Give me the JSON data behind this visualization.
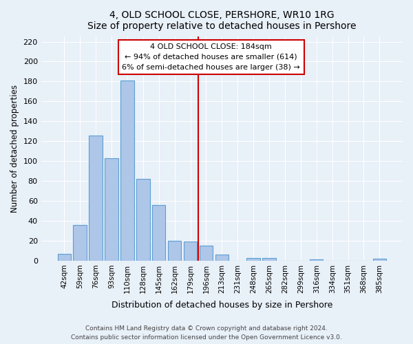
{
  "title": "4, OLD SCHOOL CLOSE, PERSHORE, WR10 1RG",
  "subtitle": "Size of property relative to detached houses in Pershore",
  "xlabel": "Distribution of detached houses by size in Pershore",
  "ylabel": "Number of detached properties",
  "bar_labels": [
    "42sqm",
    "59sqm",
    "76sqm",
    "93sqm",
    "110sqm",
    "128sqm",
    "145sqm",
    "162sqm",
    "179sqm",
    "196sqm",
    "213sqm",
    "231sqm",
    "248sqm",
    "265sqm",
    "282sqm",
    "299sqm",
    "316sqm",
    "334sqm",
    "351sqm",
    "368sqm",
    "385sqm"
  ],
  "bar_values": [
    7,
    36,
    126,
    103,
    181,
    82,
    56,
    20,
    19,
    15,
    6,
    0,
    3,
    3,
    0,
    0,
    1,
    0,
    0,
    0,
    2
  ],
  "bar_color": "#aec6e8",
  "bar_edge_color": "#5a9fd4",
  "vline_x": 8.5,
  "vline_color": "#cc0000",
  "annotation_title": "4 OLD SCHOOL CLOSE: 184sqm",
  "annotation_line1": "← 94% of detached houses are smaller (614)",
  "annotation_line2": "6% of semi-detached houses are larger (38) →",
  "annotation_box_color": "#ffffff",
  "annotation_box_edge": "#cc0000",
  "ylim": [
    0,
    225
  ],
  "yticks": [
    0,
    20,
    40,
    60,
    80,
    100,
    120,
    140,
    160,
    180,
    200,
    220
  ],
  "footer_line1": "Contains HM Land Registry data © Crown copyright and database right 2024.",
  "footer_line2": "Contains public sector information licensed under the Open Government Licence v3.0.",
  "bg_color": "#e8f0f8"
}
